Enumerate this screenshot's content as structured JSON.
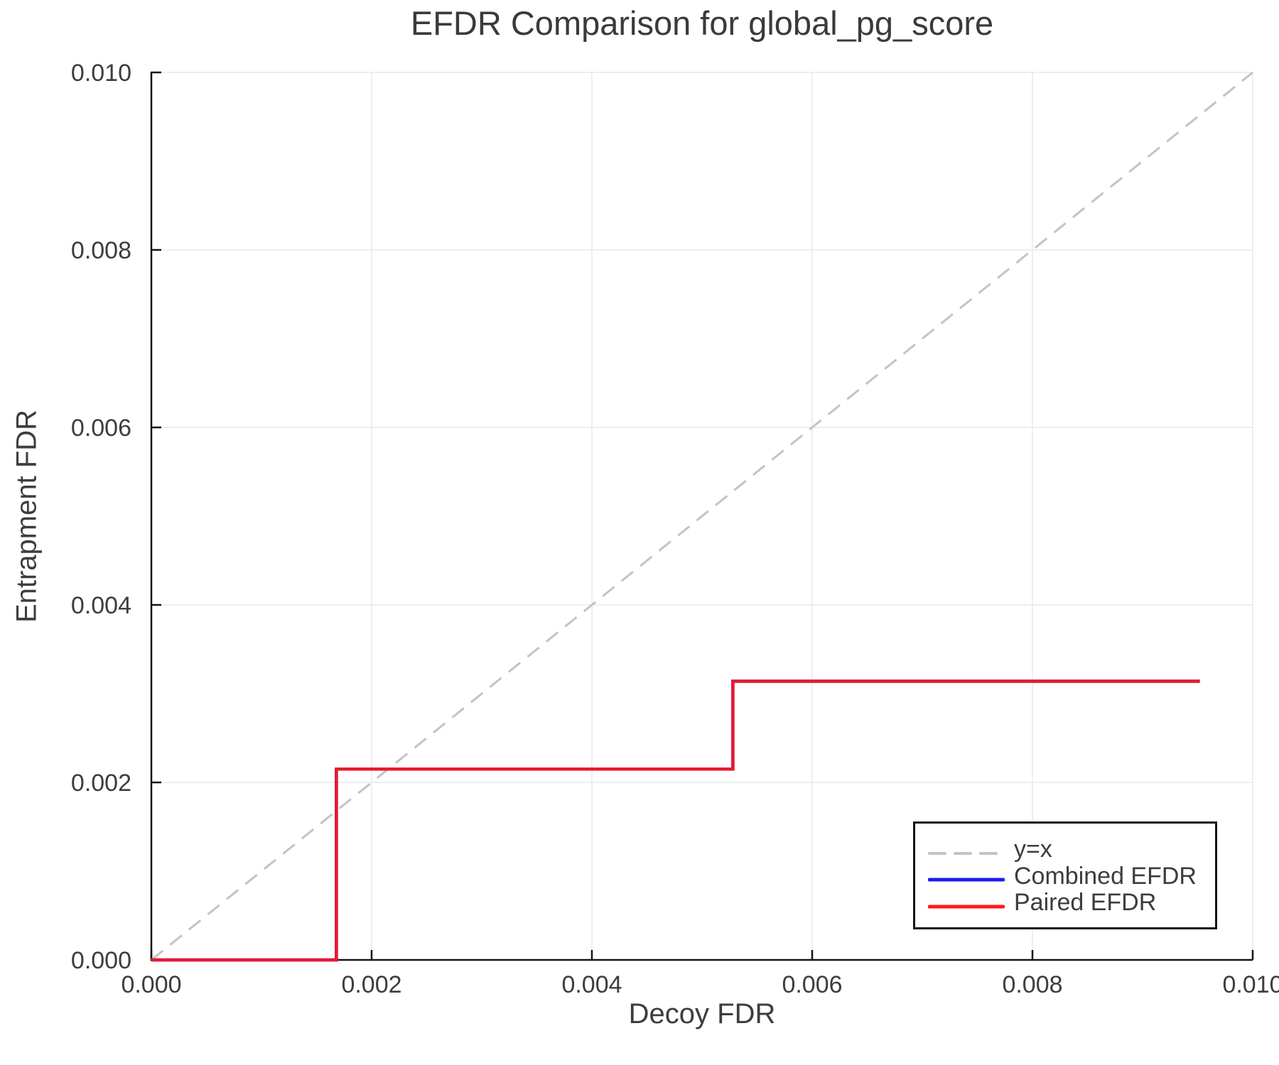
{
  "chart_data": {
    "type": "line",
    "title": "EFDR Comparison for global_pg_score",
    "xlabel": "Decoy FDR",
    "ylabel": "Entrapment FDR",
    "xlim": [
      0.0,
      0.01
    ],
    "ylim": [
      0.0,
      0.01
    ],
    "xticks": [
      0.0,
      0.002,
      0.004,
      0.006,
      0.008,
      0.01
    ],
    "yticks": [
      0.0,
      0.002,
      0.004,
      0.006,
      0.008,
      0.01
    ],
    "tick_decimals": 3,
    "grid": true,
    "grid_color": "#e9e9e9",
    "spine_color": "#141414",
    "text_color": "#3d3d3d",
    "background_color": "#ffffff",
    "legend": {
      "position": "lower right",
      "border_color": "#141414",
      "entries": [
        {
          "label": "y=x",
          "color": "#c3c3c3",
          "dash": true
        },
        {
          "label": "Combined EFDR",
          "color": "#1c1cf0",
          "dash": false
        },
        {
          "label": "Paired EFDR",
          "color": "#ff1a1a",
          "dash": false
        }
      ]
    },
    "series": [
      {
        "name": "y=x",
        "color": "#c3c3c3",
        "dash": true,
        "width": 3,
        "points": [
          [
            0.0,
            0.0
          ],
          [
            0.01,
            0.01
          ]
        ]
      },
      {
        "name": "Combined EFDR",
        "color": "#1c1cf0",
        "dash": false,
        "width": 4.5,
        "points": [
          [
            0.0,
            0.0
          ],
          [
            0.00168,
            0.0
          ],
          [
            0.00168,
            0.00215
          ],
          [
            0.00528,
            0.00215
          ],
          [
            0.00528,
            0.00314
          ],
          [
            0.00952,
            0.00314
          ]
        ]
      },
      {
        "name": "Paired EFDR",
        "color": "#ff1a1a",
        "dash": false,
        "width": 4.5,
        "opacity": 0.9,
        "points": [
          [
            0.0,
            0.0
          ],
          [
            0.00168,
            0.0
          ],
          [
            0.00168,
            0.00215
          ],
          [
            0.00528,
            0.00215
          ],
          [
            0.00528,
            0.00314
          ],
          [
            0.00952,
            0.00314
          ]
        ]
      }
    ]
  }
}
